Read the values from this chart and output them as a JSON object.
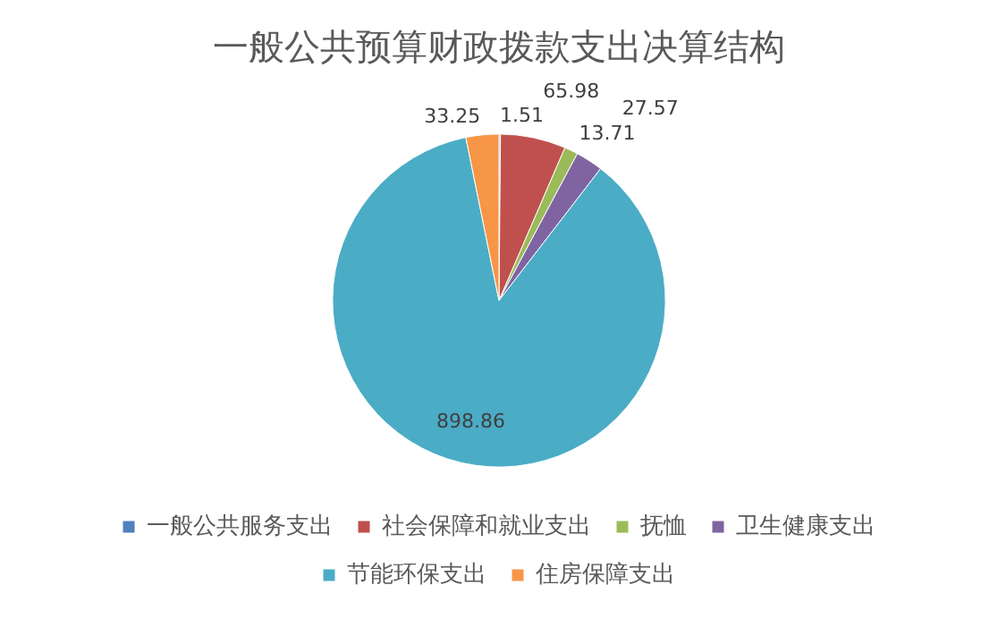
{
  "chart_data": {
    "type": "pie",
    "title": "一般公共预算财政拨款支出决算结构",
    "categories": [
      "一般公共服务支出",
      "社会保障和就业支出",
      "抚恤",
      "卫生健康支出",
      "节能环保支出",
      "住房保障支出"
    ],
    "values": [
      1.51,
      65.98,
      13.71,
      27.57,
      898.86,
      33.25
    ],
    "colors": [
      "#4f81bd",
      "#c0504d",
      "#9bbb59",
      "#8064a2",
      "#4bacc6",
      "#f79646"
    ],
    "data_labels": true,
    "legend": "bottom"
  }
}
